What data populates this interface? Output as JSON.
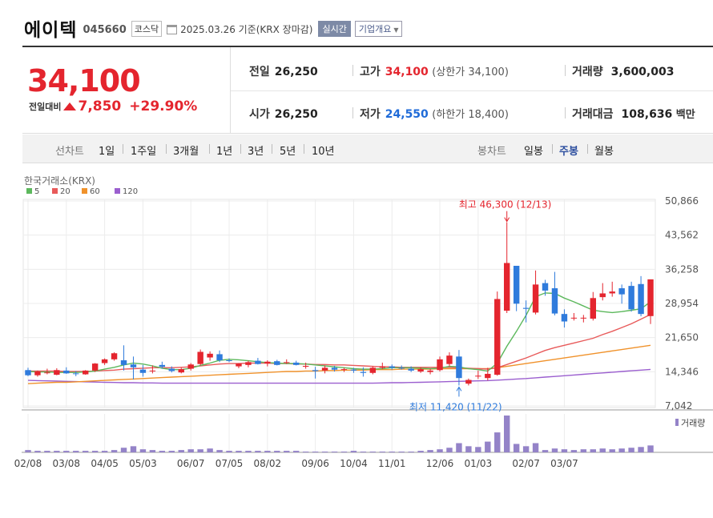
{
  "header": {
    "name": "에이텍",
    "code": "045660",
    "market": "코스닥",
    "date": "2025.03.26 기준(KRX 장마감)",
    "realtime_btn": "실시간",
    "company_btn": "기업개요"
  },
  "summary": {
    "price": "34,100",
    "diff_label": "전일대비",
    "change": "7,850",
    "rate": "+29.90%",
    "prev_label": "전일",
    "prev": "26,250",
    "open_label": "시가",
    "open": "26,250",
    "high_label": "고가",
    "high": "34,100",
    "upper_limit": "(상한가 34,100)",
    "low_label": "저가",
    "low": "24,550",
    "lower_limit": "(하한가 18,400)",
    "volume_label": "거래량",
    "volume": "3,600,003",
    "amount_label": "거래대금",
    "amount": "108,636",
    "amount_unit": "백만"
  },
  "tabs": {
    "line_label": "선차트",
    "periods": [
      "1일",
      "1주일",
      "3개월",
      "1년",
      "3년",
      "5년",
      "10년"
    ],
    "candle_label": "봉차트",
    "candles": [
      "일봉",
      "주봉",
      "월봉"
    ],
    "active_candle": "주봉"
  },
  "colors": {
    "up": "#e4252e",
    "down": "#2f7bdc",
    "ma5": "#5cb85c",
    "ma20": "#e85a5a",
    "ma60": "#f0922b",
    "ma120": "#9b5fcf",
    "volume": "#9483c8"
  },
  "chart_data": {
    "type": "candlestick",
    "source_label": "한국거래소(KRX)",
    "legend": [
      "5",
      "20",
      "60",
      "120"
    ],
    "ylim": [
      7042,
      50866
    ],
    "yticks": [
      "50,866",
      "43,562",
      "36,258",
      "28,954",
      "21,650",
      "14,346",
      "7,042"
    ],
    "xticks": [
      "02/08",
      "03/08",
      "04/05",
      "05/03",
      "06/07",
      "07/05",
      "08/02",
      "09/06",
      "10/04",
      "11/01",
      "12/06",
      "01/03",
      "02/07",
      "03/07"
    ],
    "max_annotation": "최고 46,300 (12/13)",
    "min_annotation": "최저 11,420 (11/22)",
    "volume_label": "거래량",
    "candles": [
      {
        "o": 14700,
        "h": 15200,
        "l": 13400,
        "c": 13600
      },
      {
        "o": 13600,
        "h": 14600,
        "l": 13300,
        "c": 14400
      },
      {
        "o": 14200,
        "h": 15000,
        "l": 13800,
        "c": 14200
      },
      {
        "o": 13700,
        "h": 15100,
        "l": 13600,
        "c": 14700
      },
      {
        "o": 14600,
        "h": 15300,
        "l": 13900,
        "c": 14000
      },
      {
        "o": 14000,
        "h": 14500,
        "l": 13400,
        "c": 13900
      },
      {
        "o": 13800,
        "h": 14700,
        "l": 13700,
        "c": 14600
      },
      {
        "o": 14600,
        "h": 16200,
        "l": 14300,
        "c": 16100
      },
      {
        "o": 16200,
        "h": 17200,
        "l": 15800,
        "c": 17000
      },
      {
        "o": 17000,
        "h": 18500,
        "l": 16700,
        "c": 18300
      },
      {
        "o": 16800,
        "h": 20000,
        "l": 14600,
        "c": 15800
      },
      {
        "o": 15900,
        "h": 17600,
        "l": 12700,
        "c": 15300
      },
      {
        "o": 14800,
        "h": 15800,
        "l": 13300,
        "c": 14100
      },
      {
        "o": 14600,
        "h": 15700,
        "l": 14000,
        "c": 14600
      },
      {
        "o": 15800,
        "h": 16500,
        "l": 15000,
        "c": 15400
      },
      {
        "o": 15000,
        "h": 15500,
        "l": 14200,
        "c": 14500
      },
      {
        "o": 14200,
        "h": 15200,
        "l": 14000,
        "c": 14900
      },
      {
        "o": 15000,
        "h": 16200,
        "l": 14600,
        "c": 15900
      },
      {
        "o": 16000,
        "h": 19100,
        "l": 15700,
        "c": 18600
      },
      {
        "o": 17400,
        "h": 18700,
        "l": 16700,
        "c": 18200
      },
      {
        "o": 18100,
        "h": 18900,
        "l": 16400,
        "c": 16800
      },
      {
        "o": 16800,
        "h": 17200,
        "l": 16400,
        "c": 16700
      },
      {
        "o": 15500,
        "h": 16200,
        "l": 15100,
        "c": 16100
      },
      {
        "o": 15800,
        "h": 16700,
        "l": 15300,
        "c": 16400
      },
      {
        "o": 16700,
        "h": 17300,
        "l": 15900,
        "c": 16000
      },
      {
        "o": 16100,
        "h": 16800,
        "l": 15500,
        "c": 16500
      },
      {
        "o": 16600,
        "h": 16900,
        "l": 15700,
        "c": 15800
      },
      {
        "o": 16300,
        "h": 17000,
        "l": 16000,
        "c": 16400
      },
      {
        "o": 16300,
        "h": 16700,
        "l": 15700,
        "c": 15800
      },
      {
        "o": 15500,
        "h": 16300,
        "l": 15000,
        "c": 15600
      },
      {
        "o": 14700,
        "h": 15400,
        "l": 12900,
        "c": 14500
      },
      {
        "o": 14600,
        "h": 15700,
        "l": 14000,
        "c": 15200
      },
      {
        "o": 15200,
        "h": 15600,
        "l": 14400,
        "c": 14800
      },
      {
        "o": 14800,
        "h": 15200,
        "l": 14300,
        "c": 14900
      },
      {
        "o": 14800,
        "h": 15200,
        "l": 14100,
        "c": 14600
      },
      {
        "o": 14300,
        "h": 15300,
        "l": 13300,
        "c": 14100
      },
      {
        "o": 14100,
        "h": 15500,
        "l": 13800,
        "c": 15200
      },
      {
        "o": 15200,
        "h": 16300,
        "l": 14900,
        "c": 15500
      },
      {
        "o": 15500,
        "h": 15900,
        "l": 14800,
        "c": 15200
      },
      {
        "o": 15200,
        "h": 15700,
        "l": 14800,
        "c": 15100
      },
      {
        "o": 15000,
        "h": 15500,
        "l": 14300,
        "c": 14600
      },
      {
        "o": 14400,
        "h": 15300,
        "l": 14100,
        "c": 14900
      },
      {
        "o": 14300,
        "h": 15000,
        "l": 13800,
        "c": 14600
      },
      {
        "o": 14700,
        "h": 17600,
        "l": 14400,
        "c": 17000
      },
      {
        "o": 16000,
        "h": 18500,
        "l": 15500,
        "c": 17800
      },
      {
        "o": 17600,
        "h": 19000,
        "l": 11420,
        "c": 13000
      },
      {
        "o": 11800,
        "h": 12900,
        "l": 11420,
        "c": 12600
      },
      {
        "o": 13500,
        "h": 14600,
        "l": 12800,
        "c": 13500
      },
      {
        "o": 13000,
        "h": 15200,
        "l": 12500,
        "c": 13900
      },
      {
        "o": 13700,
        "h": 31500,
        "l": 13500,
        "c": 29900
      },
      {
        "o": 27400,
        "h": 46300,
        "l": 26900,
        "c": 37600
      },
      {
        "o": 37000,
        "h": 37000,
        "l": 27300,
        "c": 28900
      },
      {
        "o": 28000,
        "h": 29600,
        "l": 24900,
        "c": 27800
      },
      {
        "o": 27000,
        "h": 36000,
        "l": 26600,
        "c": 33000
      },
      {
        "o": 33300,
        "h": 34000,
        "l": 30600,
        "c": 31700
      },
      {
        "o": 32200,
        "h": 35700,
        "l": 26400,
        "c": 26800
      },
      {
        "o": 26700,
        "h": 27700,
        "l": 23800,
        "c": 25100
      },
      {
        "o": 25900,
        "h": 26900,
        "l": 25300,
        "c": 25900
      },
      {
        "o": 25800,
        "h": 26500,
        "l": 24900,
        "c": 25900
      },
      {
        "o": 25700,
        "h": 31400,
        "l": 25300,
        "c": 30100
      },
      {
        "o": 30300,
        "h": 33300,
        "l": 29600,
        "c": 31100
      },
      {
        "o": 31100,
        "h": 33600,
        "l": 30400,
        "c": 31500
      },
      {
        "o": 32200,
        "h": 33000,
        "l": 28900,
        "c": 30900
      },
      {
        "o": 32700,
        "h": 33600,
        "l": 27200,
        "c": 27700
      },
      {
        "o": 33100,
        "h": 34800,
        "l": 26200,
        "c": 26700
      },
      {
        "o": 26250,
        "h": 34100,
        "l": 24550,
        "c": 34100
      }
    ],
    "volumes": [
      3,
      2,
      2,
      2,
      2,
      2,
      2,
      2,
      2,
      3,
      6,
      8,
      4,
      3,
      2,
      2,
      3,
      4,
      4,
      5,
      3,
      2,
      2,
      2,
      2,
      2,
      2,
      2,
      2,
      1,
      1,
      1,
      1,
      1,
      2,
      1,
      1,
      1,
      1,
      1,
      1,
      2,
      3,
      4,
      6,
      12,
      8,
      7,
      14,
      26,
      48,
      11,
      8,
      12,
      3,
      5,
      4,
      3,
      4,
      4,
      5,
      4,
      5,
      6,
      7,
      9
    ],
    "ma5": [
      14400,
      14300,
      14300,
      14200,
      14200,
      14200,
      14300,
      14500,
      14900,
      15300,
      15800,
      16200,
      16000,
      15600,
      15100,
      14800,
      14800,
      15100,
      15700,
      16200,
      16800,
      17000,
      16900,
      16700,
      16500,
      16300,
      16200,
      16100,
      16100,
      16000,
      15800,
      15600,
      15400,
      15200,
      15000,
      14900,
      14900,
      15000,
      15200,
      15200,
      15200,
      15100,
      15000,
      15100,
      15500,
      15400,
      15000,
      14800,
      14500,
      16200,
      19800,
      23000,
      26400,
      30400,
      31200,
      31100,
      30100,
      29300,
      28400,
      27500,
      27200,
      27000,
      27200,
      27500,
      27800,
      29300
    ],
    "ma20": [
      14500,
      14500,
      14500,
      14500,
      14400,
      14400,
      14400,
      14500,
      14600,
      14700,
      14900,
      15000,
      15100,
      15200,
      15200,
      15200,
      15300,
      15400,
      15600,
      15800,
      16000,
      16100,
      16100,
      16200,
      16200,
      16200,
      16100,
      16100,
      16000,
      16000,
      15900,
      15900,
      15800,
      15800,
      15700,
      15600,
      15500,
      15400,
      15400,
      15300,
      15300,
      15300,
      15300,
      15300,
      15300,
      15200,
      15100,
      15000,
      14900,
      15200,
      15900,
      16600,
      17300,
      18100,
      18900,
      19500,
      20000,
      20500,
      21000,
      21500,
      22300,
      23000,
      23800,
      24600,
      25600,
      26600
    ],
    "ma60": [
      11800,
      11900,
      12000,
      12100,
      12100,
      12200,
      12300,
      12400,
      12500,
      12600,
      12700,
      12800,
      12900,
      13000,
      13100,
      13200,
      13300,
      13400,
      13500,
      13600,
      13700,
      13800,
      13900,
      14000,
      14100,
      14200,
      14300,
      14400,
      14400,
      14500,
      14500,
      14600,
      14600,
      14700,
      14700,
      14700,
      14800,
      14800,
      14800,
      14900,
      14900,
      14900,
      14900,
      15000,
      15000,
      15000,
      15000,
      15000,
      15000,
      15200,
      15500,
      15800,
      16100,
      16400,
      16700,
      17000,
      17300,
      17600,
      17900,
      18200,
      18500,
      18800,
      19100,
      19400,
      19700,
      20000
    ],
    "ma120": [
      12500,
      12450,
      12400,
      12350,
      12300,
      12250,
      12200,
      12150,
      12100,
      12050,
      12000,
      12000,
      11950,
      11950,
      11900,
      11900,
      11900,
      11900,
      11900,
      11900,
      11900,
      11900,
      11900,
      11900,
      11900,
      11900,
      11900,
      11900,
      11900,
      11900,
      11900,
      11900,
      11900,
      11900,
      11900,
      11900,
      11900,
      11950,
      12000,
      12000,
      12050,
      12100,
      12150,
      12200,
      12250,
      12300,
      12350,
      12400,
      12450,
      12550,
      12650,
      12800,
      12900,
      13050,
      13200,
      13350,
      13500,
      13650,
      13800,
      13950,
      14100,
      14250,
      14400,
      14550,
      14700,
      14850
    ]
  }
}
